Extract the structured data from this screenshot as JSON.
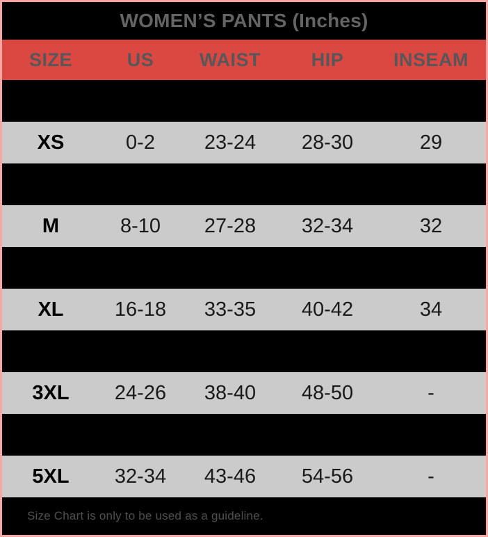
{
  "chart_data": {
    "type": "table",
    "title": "WOMEN’S PANTS (Inches)",
    "columns": [
      "SIZE",
      "US",
      "WAIST",
      "HIP",
      "INSEAM"
    ],
    "rows": [
      [
        "",
        "",
        "",
        "",
        ""
      ],
      [
        "XS",
        "0-2",
        "23-24",
        "28-30",
        "29"
      ],
      [
        "",
        "",
        "",
        "",
        ""
      ],
      [
        "M",
        "8-10",
        "27-28",
        "32-34",
        "32"
      ],
      [
        "",
        "",
        "",
        "",
        ""
      ],
      [
        "XL",
        "16-18",
        "33-35",
        "40-42",
        "34"
      ],
      [
        "",
        "",
        "",
        "",
        ""
      ],
      [
        "3XL",
        "24-26",
        "38-40",
        "48-50",
        "-"
      ],
      [
        "",
        "",
        "",
        "",
        ""
      ],
      [
        "5XL",
        "32-34",
        "43-46",
        "54-56",
        "-"
      ]
    ],
    "row_visibility": [
      "hidden",
      "visible",
      "hidden",
      "visible",
      "hidden",
      "visible",
      "hidden",
      "visible",
      "hidden",
      "visible"
    ],
    "footnote": "Size Chart is only to be used as a guideline.",
    "layout_hints": {
      "alternating_hidden_rows": "black rows contain no legible text (black-on-black)",
      "visible_row_background": "light gray",
      "header_background": "red"
    }
  },
  "colors": {
    "header_red": "#DB4842",
    "row_gray": "#CBCBCB",
    "background_black": "#000000",
    "border_pink": "#F9A6A4",
    "title_gray": "#646464",
    "header_text_gray": "#57575A",
    "value_text": "#1A1A1A",
    "footnote_gray": "#4F4F4F"
  }
}
